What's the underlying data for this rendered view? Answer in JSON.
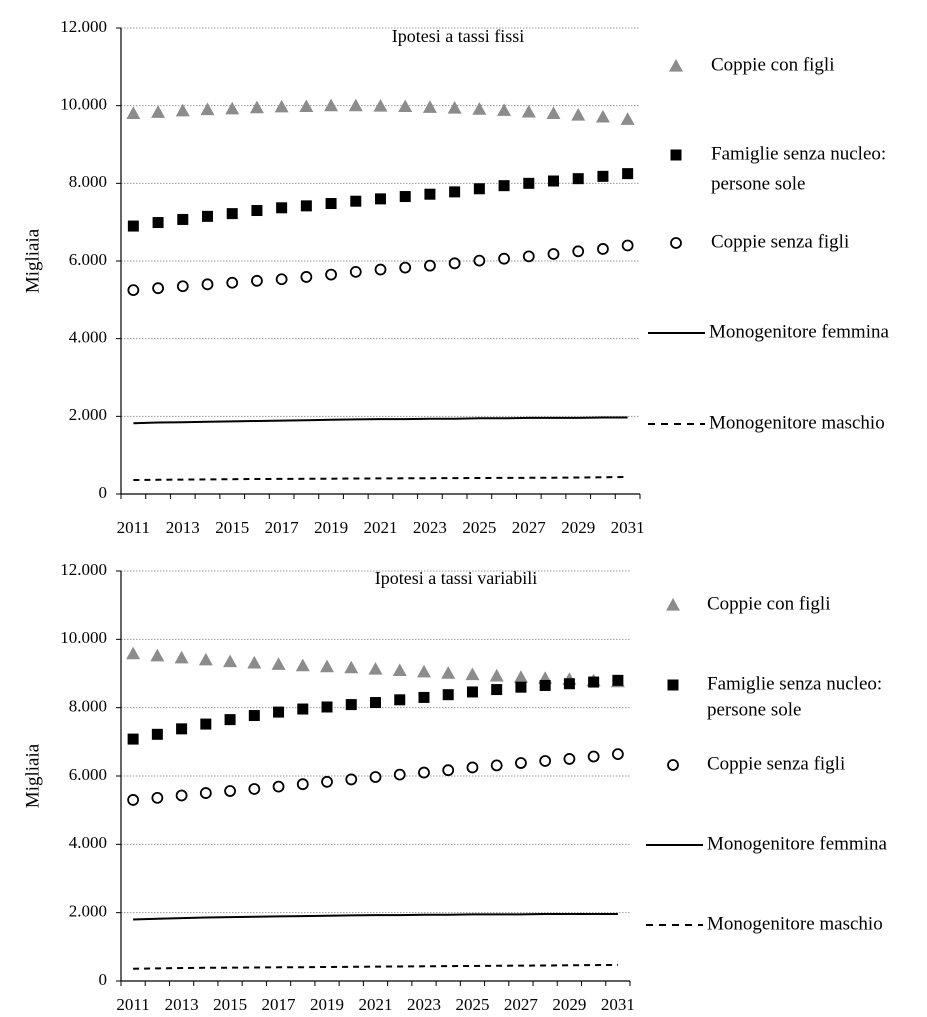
{
  "chart_data": [
    {
      "type": "scatter",
      "title": "Ipotesi a tassi fissi",
      "ylabel": "Migliaia",
      "xlabel": "",
      "ylim": [
        0,
        12000
      ],
      "y_ticks": [
        "0",
        "2.000",
        "4.000",
        "6.000",
        "8.000",
        "10.000",
        "12.000"
      ],
      "x": [
        2011,
        2012,
        2013,
        2014,
        2015,
        2016,
        2017,
        2018,
        2019,
        2020,
        2021,
        2022,
        2023,
        2024,
        2025,
        2026,
        2027,
        2028,
        2029,
        2030,
        2031
      ],
      "x_tick_labels": [
        "2011",
        "2013",
        "2015",
        "2017",
        "2019",
        "2021",
        "2023",
        "2025",
        "2027",
        "2029",
        "2031"
      ],
      "grid": true,
      "legend_position": "right",
      "series": [
        {
          "name": "Coppie con figli",
          "marker": "triangle",
          "color": "#8c8c8c",
          "values": [
            9800,
            9830,
            9870,
            9900,
            9920,
            9950,
            9970,
            9980,
            10000,
            10000,
            9990,
            9980,
            9960,
            9940,
            9910,
            9880,
            9840,
            9800,
            9760,
            9710,
            9650
          ]
        },
        {
          "name": "Famiglie senza nucleo:",
          "name_line2": "persone sole",
          "marker": "square",
          "color": "#000000",
          "values": [
            6900,
            6990,
            7070,
            7150,
            7220,
            7300,
            7370,
            7420,
            7480,
            7540,
            7600,
            7660,
            7720,
            7780,
            7860,
            7940,
            8000,
            8060,
            8120,
            8180,
            8250
          ]
        },
        {
          "name": "Coppie senza figli",
          "marker": "circle",
          "color": "#000000",
          "values": [
            5250,
            5300,
            5350,
            5400,
            5440,
            5490,
            5530,
            5590,
            5650,
            5720,
            5780,
            5830,
            5880,
            5940,
            6010,
            6060,
            6120,
            6180,
            6250,
            6310,
            6400
          ]
        },
        {
          "name": "Monogenitore femmina",
          "marker": "solid-line",
          "color": "#000000",
          "values": [
            1820,
            1840,
            1850,
            1860,
            1870,
            1880,
            1890,
            1900,
            1910,
            1920,
            1930,
            1930,
            1940,
            1940,
            1950,
            1950,
            1960,
            1960,
            1960,
            1970,
            1970
          ]
        },
        {
          "name": "Monogenitore maschio",
          "marker": "dashed-line",
          "color": "#000000",
          "values": [
            360,
            365,
            370,
            375,
            380,
            385,
            390,
            392,
            395,
            400,
            402,
            405,
            408,
            410,
            412,
            415,
            418,
            420,
            425,
            430,
            440
          ]
        }
      ]
    },
    {
      "type": "scatter",
      "title": "Ipotesi a tassi variabili",
      "ylabel": "Migliaia",
      "xlabel": "",
      "ylim": [
        0,
        12000
      ],
      "y_ticks": [
        "0",
        "2.000",
        "4.000",
        "6.000",
        "8.000",
        "10.000",
        "12.000"
      ],
      "x": [
        2011,
        2012,
        2013,
        2014,
        2015,
        2016,
        2017,
        2018,
        2019,
        2020,
        2021,
        2022,
        2023,
        2024,
        2025,
        2026,
        2027,
        2028,
        2029,
        2030,
        2031
      ],
      "x_tick_labels": [
        "2011",
        "2013",
        "2015",
        "2017",
        "2019",
        "2021",
        "2023",
        "2025",
        "2027",
        "2029",
        "2031"
      ],
      "grid": true,
      "legend_position": "right",
      "series": [
        {
          "name": "Coppie con figli",
          "marker": "triangle",
          "color": "#8c8c8c",
          "values": [
            9580,
            9520,
            9460,
            9400,
            9350,
            9310,
            9270,
            9230,
            9200,
            9170,
            9130,
            9090,
            9050,
            9010,
            8970,
            8930,
            8890,
            8860,
            8830,
            8790,
            8760
          ]
        },
        {
          "name": "Famiglie senza nucleo:",
          "name_line2": "persone sole",
          "marker": "square",
          "color": "#000000",
          "values": [
            7080,
            7220,
            7380,
            7520,
            7650,
            7770,
            7870,
            7960,
            8020,
            8090,
            8150,
            8230,
            8300,
            8380,
            8460,
            8530,
            8600,
            8650,
            8700,
            8750,
            8800
          ]
        },
        {
          "name": "Coppie senza figli",
          "marker": "circle",
          "color": "#000000",
          "values": [
            5300,
            5360,
            5430,
            5500,
            5560,
            5620,
            5690,
            5760,
            5830,
            5900,
            5970,
            6040,
            6100,
            6170,
            6250,
            6310,
            6380,
            6440,
            6500,
            6570,
            6640
          ]
        },
        {
          "name": "Monogenitore femmina",
          "marker": "solid-line",
          "color": "#000000",
          "values": [
            1800,
            1820,
            1840,
            1860,
            1870,
            1880,
            1890,
            1900,
            1910,
            1920,
            1930,
            1930,
            1940,
            1940,
            1950,
            1950,
            1950,
            1960,
            1960,
            1960,
            1960
          ]
        },
        {
          "name": "Monogenitore maschio",
          "marker": "dashed-line",
          "color": "#000000",
          "values": [
            360,
            370,
            380,
            385,
            390,
            395,
            400,
            405,
            410,
            415,
            420,
            425,
            430,
            435,
            440,
            445,
            450,
            455,
            460,
            465,
            470
          ]
        }
      ]
    }
  ]
}
